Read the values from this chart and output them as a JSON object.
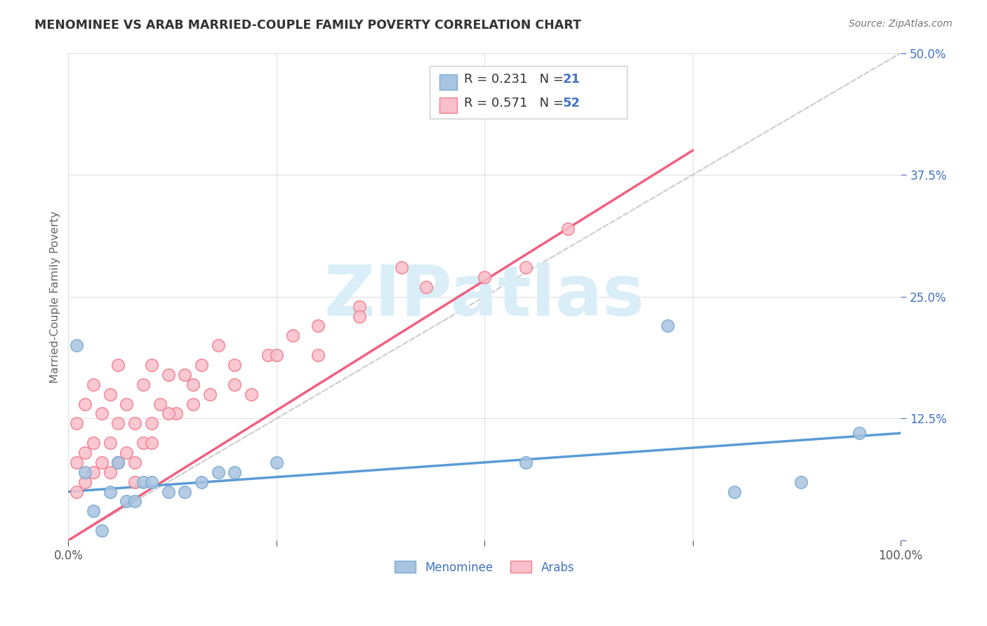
{
  "title": "MENOMINEE VS ARAB MARRIED-COUPLE FAMILY POVERTY CORRELATION CHART",
  "source": "Source: ZipAtlas.com",
  "ylabel": "Married-Couple Family Poverty",
  "xlim": [
    0,
    100
  ],
  "ylim": [
    0,
    50
  ],
  "background_color": "#ffffff",
  "grid_color": "#dddddd",
  "menominee_fill": "#a8c4e0",
  "menominee_edge": "#7aadd4",
  "arab_fill": "#f9bfcb",
  "arab_edge": "#f08090",
  "menominee_line_color": "#5b9bd5",
  "arab_line_color": "#f06080",
  "ref_line_color": "#cccccc",
  "title_color": "#333333",
  "axis_label_color": "#666666",
  "tick_color_x": "#555555",
  "tick_color_y": "#4472c4",
  "legend_text_color": "#333333",
  "legend_n_color": "#4472c4",
  "watermark_color": "#daeef8",
  "legend_label_menominee": "Menominee",
  "legend_label_arab": "Arabs",
  "menominee_x": [
    1,
    2,
    3,
    4,
    5,
    6,
    7,
    8,
    9,
    10,
    12,
    14,
    16,
    18,
    20,
    25,
    55,
    72,
    80,
    88,
    95
  ],
  "menominee_y": [
    20,
    7,
    3,
    1,
    5,
    8,
    4,
    4,
    6,
    6,
    5,
    5,
    6,
    7,
    7,
    8,
    8,
    22,
    5,
    6,
    11
  ],
  "arab_x": [
    1,
    1,
    1,
    2,
    2,
    2,
    3,
    3,
    3,
    4,
    4,
    5,
    5,
    5,
    6,
    6,
    6,
    7,
    7,
    8,
    8,
    9,
    9,
    10,
    10,
    11,
    12,
    13,
    14,
    15,
    16,
    17,
    18,
    20,
    22,
    24,
    27,
    30,
    35,
    40,
    43,
    50,
    55,
    60,
    8,
    10,
    12,
    15,
    20,
    25,
    30,
    35
  ],
  "arab_y": [
    5,
    8,
    12,
    6,
    9,
    14,
    7,
    10,
    16,
    8,
    13,
    7,
    10,
    15,
    8,
    12,
    18,
    9,
    14,
    8,
    12,
    10,
    16,
    12,
    18,
    14,
    17,
    13,
    17,
    16,
    18,
    15,
    20,
    16,
    15,
    19,
    21,
    19,
    24,
    28,
    26,
    27,
    28,
    32,
    6,
    10,
    13,
    14,
    18,
    19,
    22,
    23
  ]
}
